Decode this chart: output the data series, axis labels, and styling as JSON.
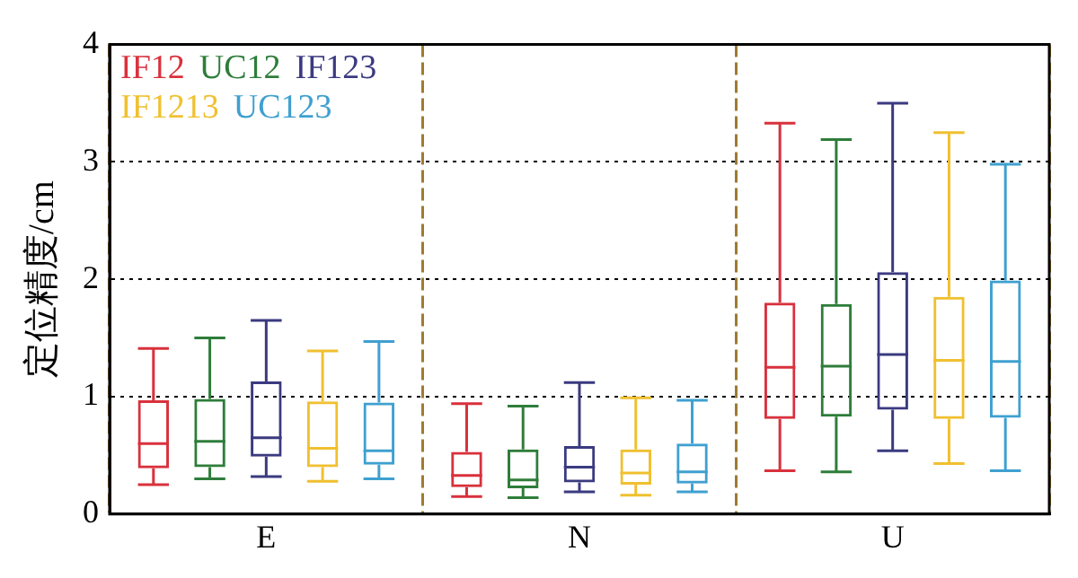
{
  "chart_data": {
    "type": "box",
    "ylabel": "定位精度/cm",
    "categories": [
      "E",
      "N",
      "U"
    ],
    "ylim": [
      0,
      4
    ],
    "yticks": [
      0,
      1,
      2,
      3,
      4
    ],
    "grid": true,
    "legend": "top left",
    "series": [
      {
        "name": "IF12",
        "color": "#d9313c",
        "boxes": [
          {
            "low": 0.25,
            "q1": 0.39,
            "median": 0.6,
            "q3": 0.97,
            "high": 1.41
          },
          {
            "low": 0.15,
            "q1": 0.23,
            "median": 0.33,
            "q3": 0.53,
            "high": 0.94
          },
          {
            "low": 0.37,
            "q1": 0.81,
            "median": 1.25,
            "q3": 1.8,
            "high": 3.33
          }
        ]
      },
      {
        "name": "UC12",
        "color": "#2e7d3a",
        "boxes": [
          {
            "low": 0.3,
            "q1": 0.4,
            "median": 0.62,
            "q3": 0.98,
            "high": 1.5
          },
          {
            "low": 0.14,
            "q1": 0.22,
            "median": 0.29,
            "q3": 0.55,
            "high": 0.92
          },
          {
            "low": 0.36,
            "q1": 0.83,
            "median": 1.26,
            "q3": 1.79,
            "high": 3.19
          }
        ]
      },
      {
        "name": "IF123",
        "color": "#3b3a80",
        "boxes": [
          {
            "low": 0.32,
            "q1": 0.49,
            "median": 0.65,
            "q3": 1.13,
            "high": 1.65
          },
          {
            "low": 0.19,
            "q1": 0.27,
            "median": 0.4,
            "q3": 0.58,
            "high": 1.12
          },
          {
            "low": 0.54,
            "q1": 0.89,
            "median": 1.36,
            "q3": 2.06,
            "high": 3.5
          }
        ]
      },
      {
        "name": "IF1213",
        "color": "#f0c030",
        "boxes": [
          {
            "low": 0.28,
            "q1": 0.4,
            "median": 0.56,
            "q3": 0.96,
            "high": 1.39
          },
          {
            "low": 0.16,
            "q1": 0.25,
            "median": 0.35,
            "q3": 0.55,
            "high": 0.99
          },
          {
            "low": 0.43,
            "q1": 0.81,
            "median": 1.31,
            "q3": 1.85,
            "high": 3.25
          }
        ]
      },
      {
        "name": "UC123",
        "color": "#3fa0d0",
        "boxes": [
          {
            "low": 0.3,
            "q1": 0.42,
            "median": 0.54,
            "q3": 0.95,
            "high": 1.47
          },
          {
            "low": 0.19,
            "q1": 0.26,
            "median": 0.36,
            "q3": 0.6,
            "high": 0.97
          },
          {
            "low": 0.37,
            "q1": 0.82,
            "median": 1.3,
            "q3": 1.99,
            "high": 2.98
          }
        ]
      }
    ]
  }
}
